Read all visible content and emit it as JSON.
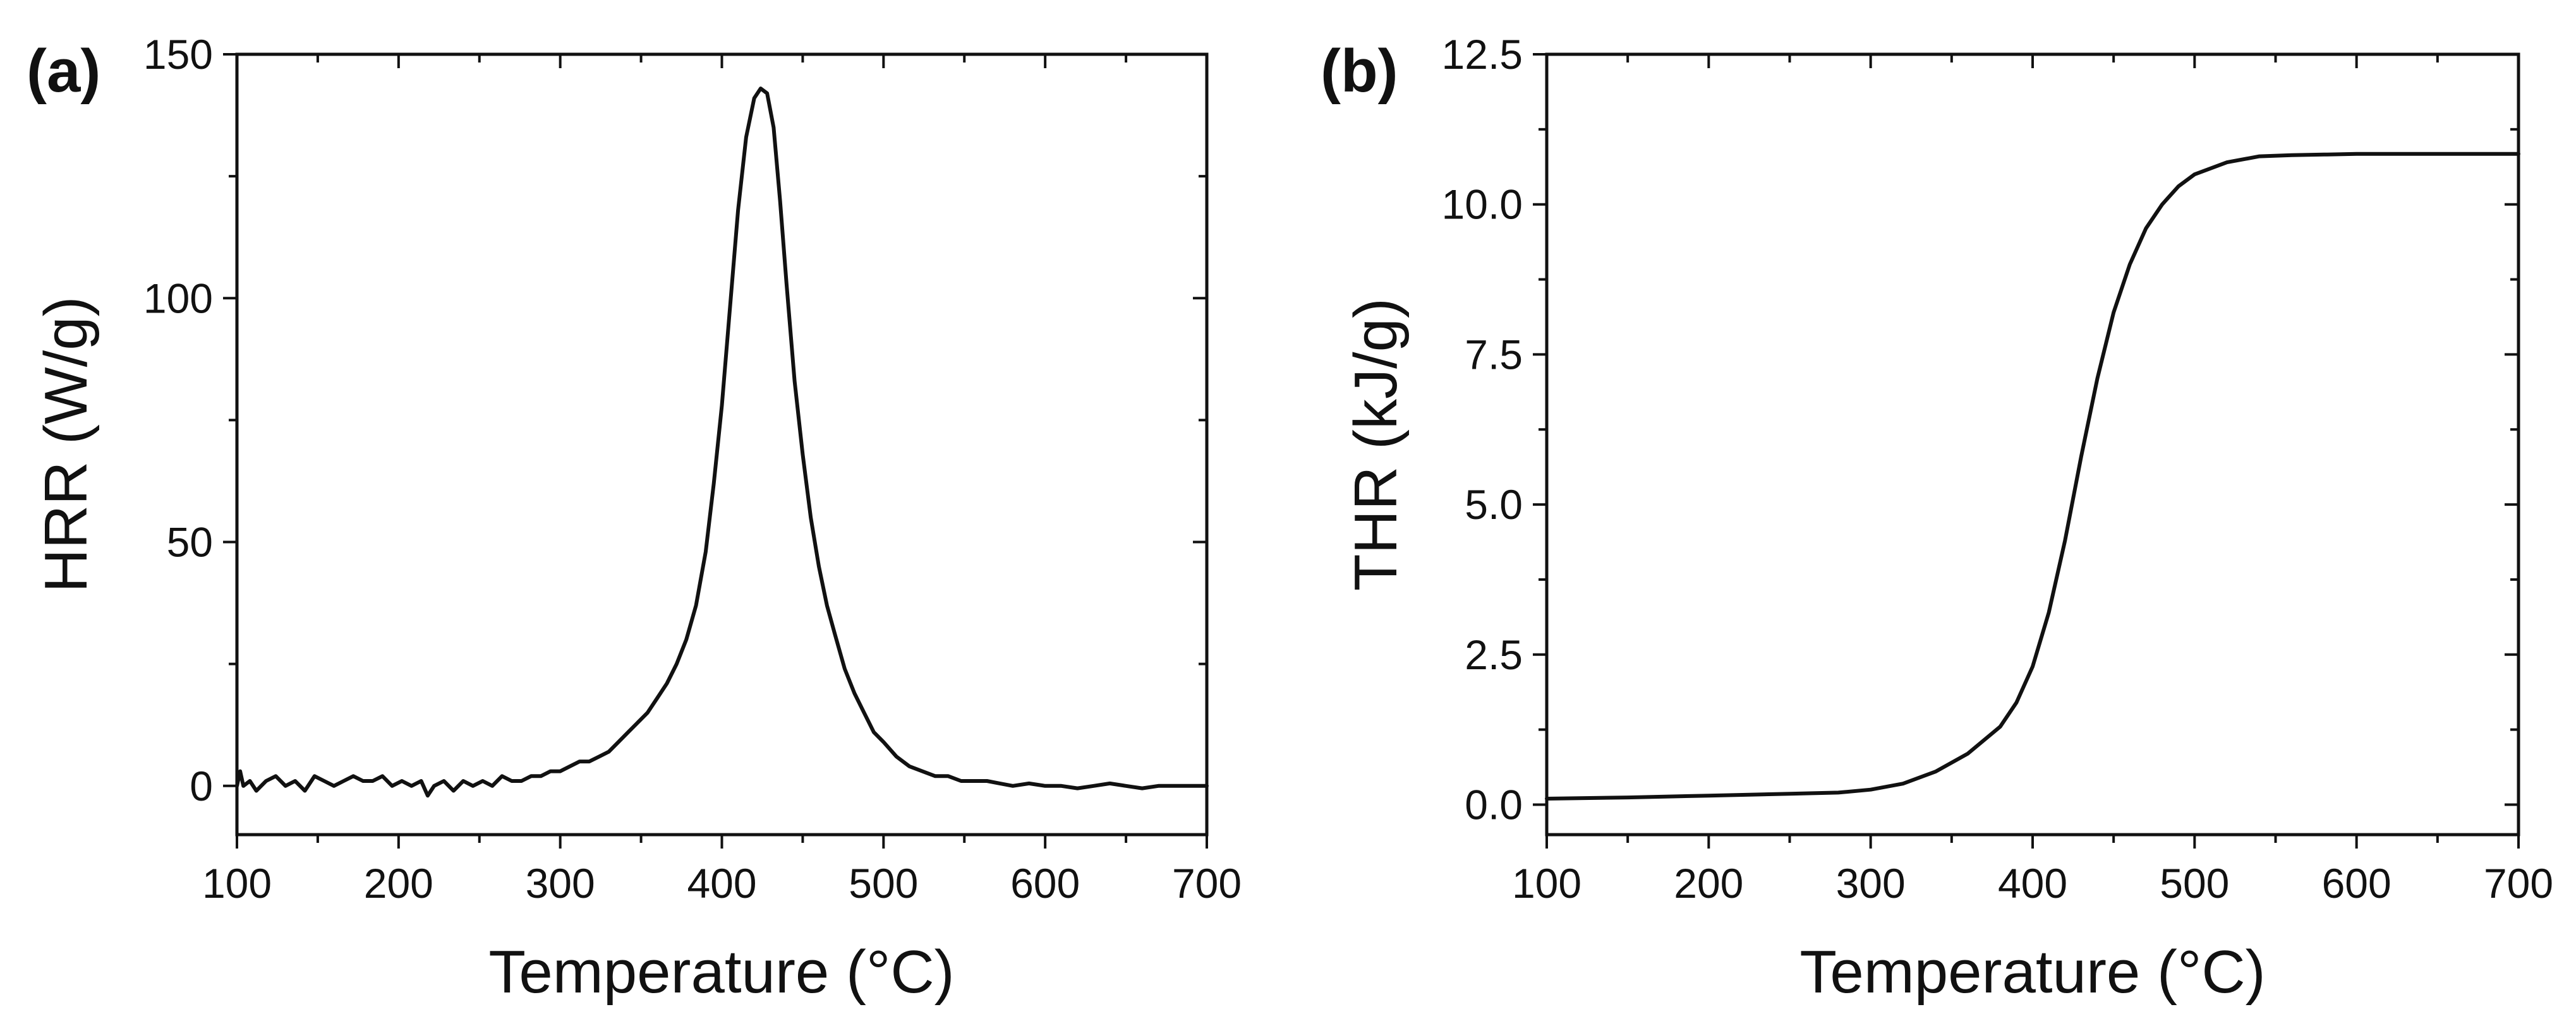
{
  "chart_data": [
    {
      "type": "line",
      "panel": "(a)",
      "title": "",
      "xlabel": "Temperature (°C)",
      "ylabel": "HRR (W/g)",
      "xlim": [
        100,
        700
      ],
      "ylim": [
        -10,
        150
      ],
      "xticks": [
        100,
        200,
        300,
        400,
        500,
        600,
        700
      ],
      "yticks": [
        0,
        50,
        100,
        150
      ],
      "xtick_labels": [
        "100",
        "200",
        "300",
        "400",
        "500",
        "600",
        "700"
      ],
      "ytick_labels": [
        "0",
        "50",
        "100",
        "150"
      ],
      "grid": false,
      "series": [
        {
          "name": "HRR",
          "color": "#111111",
          "x": [
            100,
            102,
            104,
            108,
            112,
            118,
            124,
            130,
            136,
            142,
            148,
            154,
            160,
            166,
            172,
            178,
            184,
            190,
            196,
            202,
            208,
            214,
            218,
            222,
            228,
            234,
            240,
            246,
            252,
            258,
            264,
            270,
            276,
            282,
            288,
            294,
            300,
            306,
            312,
            318,
            324,
            330,
            336,
            342,
            348,
            354,
            360,
            366,
            372,
            378,
            384,
            390,
            395,
            400,
            405,
            410,
            415,
            420,
            424,
            428,
            432,
            436,
            440,
            445,
            450,
            455,
            460,
            465,
            470,
            476,
            482,
            488,
            494,
            500,
            508,
            516,
            524,
            532,
            540,
            548,
            556,
            564,
            572,
            580,
            590,
            600,
            610,
            620,
            630,
            640,
            650,
            660,
            670,
            680,
            690,
            700
          ],
          "y": [
            0,
            3,
            0,
            1,
            -1,
            1,
            2,
            0,
            1,
            -1,
            2,
            1,
            0,
            1,
            2,
            1,
            1,
            2,
            0,
            1,
            0,
            1,
            -2,
            0,
            1,
            -1,
            1,
            0,
            1,
            0,
            2,
            1,
            1,
            2,
            2,
            3,
            3,
            4,
            5,
            5,
            6,
            7,
            9,
            11,
            13,
            15,
            18,
            21,
            25,
            30,
            37,
            48,
            62,
            78,
            98,
            118,
            133,
            141,
            143,
            142,
            135,
            120,
            103,
            83,
            68,
            55,
            45,
            37,
            31,
            24,
            19,
            15,
            11,
            9,
            6,
            4,
            3,
            2,
            2,
            1,
            1,
            1,
            0.5,
            0,
            0.5,
            0,
            0,
            -0.5,
            0,
            0.5,
            0,
            -0.5,
            0,
            0,
            0,
            0
          ]
        }
      ]
    },
    {
      "type": "line",
      "panel": "(b)",
      "title": "",
      "xlabel": "Temperature (°C)",
      "ylabel": "THR (kJ/g)",
      "xlim": [
        100,
        700
      ],
      "ylim": [
        -0.5,
        12.5
      ],
      "xticks": [
        100,
        200,
        300,
        400,
        500,
        600,
        700
      ],
      "yticks": [
        0.0,
        2.5,
        5.0,
        7.5,
        10.0,
        12.5
      ],
      "xtick_labels": [
        "100",
        "200",
        "300",
        "400",
        "500",
        "600",
        "700"
      ],
      "ytick_labels": [
        "0.0",
        "2.5",
        "5.0",
        "7.5",
        "10.0",
        "12.5"
      ],
      "grid": false,
      "series": [
        {
          "name": "THR",
          "color": "#111111",
          "x": [
            100,
            150,
            200,
            250,
            280,
            300,
            320,
            340,
            360,
            380,
            390,
            400,
            410,
            420,
            430,
            440,
            450,
            460,
            470,
            480,
            490,
            500,
            520,
            540,
            560,
            580,
            600,
            650,
            700
          ],
          "y": [
            0.1,
            0.12,
            0.15,
            0.18,
            0.2,
            0.25,
            0.35,
            0.55,
            0.85,
            1.3,
            1.7,
            2.3,
            3.2,
            4.4,
            5.8,
            7.1,
            8.2,
            9.0,
            9.6,
            10.0,
            10.3,
            10.5,
            10.7,
            10.8,
            10.82,
            10.83,
            10.84,
            10.84,
            10.84
          ]
        }
      ]
    }
  ]
}
